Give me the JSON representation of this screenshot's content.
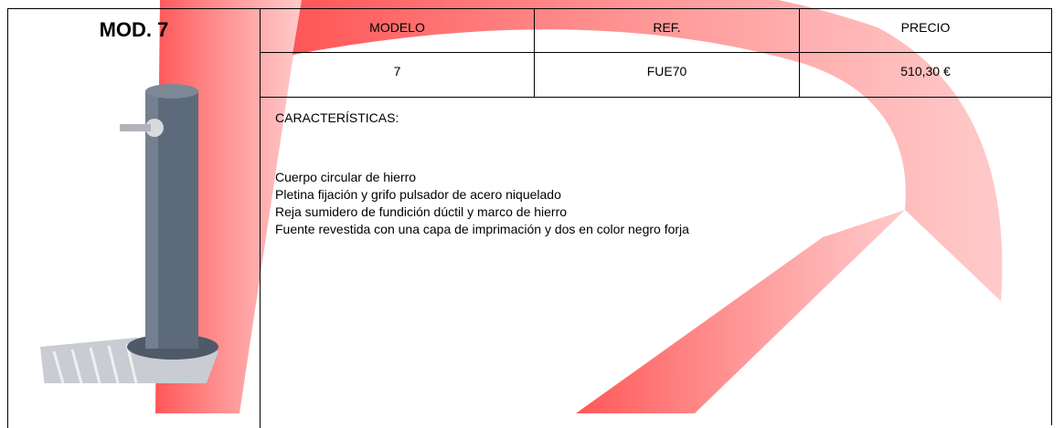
{
  "header": {
    "title": "MOD. 7"
  },
  "table": {
    "headers": [
      "MODELO",
      "REF.",
      "PRECIO"
    ],
    "rows": [
      [
        "7",
        "FUE70",
        "510,30 €"
      ]
    ]
  },
  "characteristics": {
    "label": "CARACTERÍSTICAS:",
    "items": [
      "Cuerpo circular de hierro",
      "Pletina fijación y grifo pulsador de acero niquelado",
      "Reja sumidero de fundición dúctil y marco de hierro",
      "Fuente revestida con una capa de imprimación y dos en color negro forja"
    ]
  }
}
